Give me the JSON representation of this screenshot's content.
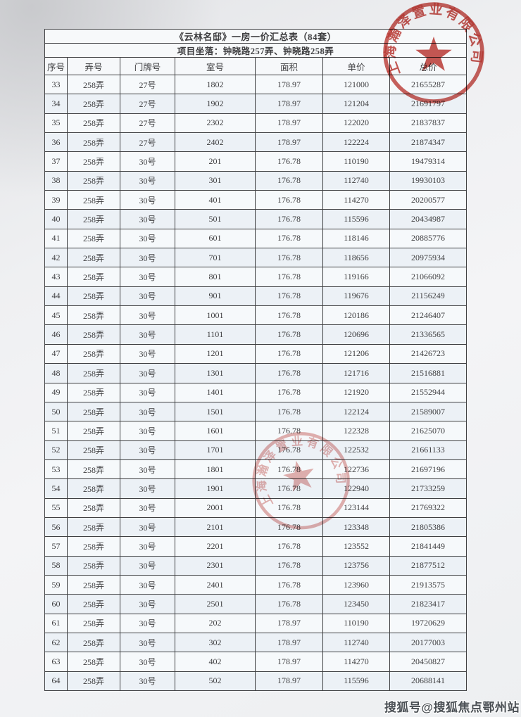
{
  "table": {
    "title": "《云林名邸》一房一价汇总表（84套）",
    "subtitle": "项目坐落：钟晓路257弄、钟晓路258弄",
    "headers": [
      "序号",
      "弄号",
      "门牌号",
      "室号",
      "面积",
      "单价",
      "总价"
    ],
    "rows": [
      [
        "33",
        "258弄",
        "27号",
        "1802",
        "178.97",
        "121000",
        "21655287"
      ],
      [
        "34",
        "258弄",
        "27号",
        "1902",
        "178.97",
        "121204",
        "21691797"
      ],
      [
        "35",
        "258弄",
        "27号",
        "2302",
        "178.97",
        "122020",
        "21837837"
      ],
      [
        "36",
        "258弄",
        "27号",
        "2402",
        "178.97",
        "122224",
        "21874347"
      ],
      [
        "37",
        "258弄",
        "30号",
        "201",
        "176.78",
        "110190",
        "19479314"
      ],
      [
        "38",
        "258弄",
        "30号",
        "301",
        "176.78",
        "112740",
        "19930103"
      ],
      [
        "39",
        "258弄",
        "30号",
        "401",
        "176.78",
        "114270",
        "20200577"
      ],
      [
        "40",
        "258弄",
        "30号",
        "501",
        "176.78",
        "115596",
        "20434987"
      ],
      [
        "41",
        "258弄",
        "30号",
        "601",
        "176.78",
        "118146",
        "20885776"
      ],
      [
        "42",
        "258弄",
        "30号",
        "701",
        "176.78",
        "118656",
        "20975934"
      ],
      [
        "43",
        "258弄",
        "30号",
        "801",
        "176.78",
        "119166",
        "21066092"
      ],
      [
        "44",
        "258弄",
        "30号",
        "901",
        "176.78",
        "119676",
        "21156249"
      ],
      [
        "45",
        "258弄",
        "30号",
        "1001",
        "176.78",
        "120186",
        "21246407"
      ],
      [
        "46",
        "258弄",
        "30号",
        "1101",
        "176.78",
        "120696",
        "21336565"
      ],
      [
        "47",
        "258弄",
        "30号",
        "1201",
        "176.78",
        "121206",
        "21426723"
      ],
      [
        "48",
        "258弄",
        "30号",
        "1301",
        "176.78",
        "121716",
        "21516881"
      ],
      [
        "49",
        "258弄",
        "30号",
        "1401",
        "176.78",
        "121920",
        "21552944"
      ],
      [
        "50",
        "258弄",
        "30号",
        "1501",
        "176.78",
        "122124",
        "21589007"
      ],
      [
        "51",
        "258弄",
        "30号",
        "1601",
        "176.78",
        "122328",
        "21625070"
      ],
      [
        "52",
        "258弄",
        "30号",
        "1701",
        "176.78",
        "122532",
        "21661133"
      ],
      [
        "53",
        "258弄",
        "30号",
        "1801",
        "176.78",
        "122736",
        "21697196"
      ],
      [
        "54",
        "258弄",
        "30号",
        "1901",
        "176.78",
        "122940",
        "21733259"
      ],
      [
        "55",
        "258弄",
        "30号",
        "2001",
        "176.78",
        "123144",
        "21769322"
      ],
      [
        "56",
        "258弄",
        "30号",
        "2101",
        "176.78",
        "123348",
        "21805386"
      ],
      [
        "57",
        "258弄",
        "30号",
        "2201",
        "176.78",
        "123552",
        "21841449"
      ],
      [
        "58",
        "258弄",
        "30号",
        "2301",
        "176.78",
        "123756",
        "21877512"
      ],
      [
        "59",
        "258弄",
        "30号",
        "2401",
        "176.78",
        "123960",
        "21913575"
      ],
      [
        "60",
        "258弄",
        "30号",
        "2501",
        "176.78",
        "123450",
        "21823417"
      ],
      [
        "61",
        "258弄",
        "30号",
        "202",
        "178.97",
        "110190",
        "19720629"
      ],
      [
        "62",
        "258弄",
        "30号",
        "302",
        "178.97",
        "112740",
        "20177003"
      ],
      [
        "63",
        "258弄",
        "30号",
        "402",
        "178.97",
        "114270",
        "20450827"
      ],
      [
        "64",
        "258弄",
        "30号",
        "502",
        "178.97",
        "115596",
        "20688141"
      ]
    ]
  },
  "stamps": {
    "seal_arc_text": "上海瀚泽置业有限公司",
    "seal_color": "#bf3b35",
    "seal_color_faded": "#c4524c"
  },
  "footer": {
    "watermark": "搜狐号@搜狐焦点鄂州站"
  }
}
